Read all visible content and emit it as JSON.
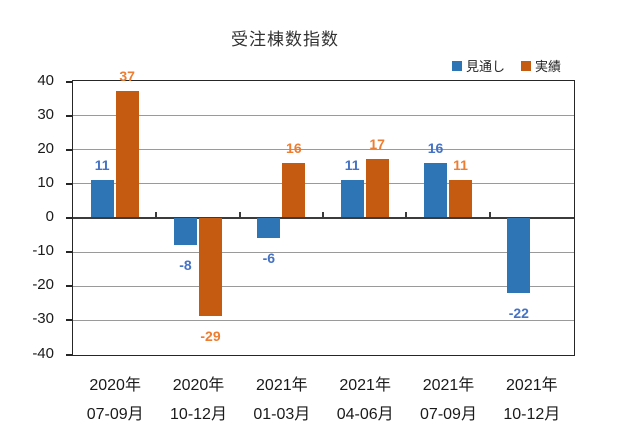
{
  "title": "受注棟数指数",
  "legend": {
    "items": [
      {
        "key": "forecast",
        "label": "見通し",
        "color": "#2E75B6"
      },
      {
        "key": "actual",
        "label": "実績",
        "color": "#C55A11"
      }
    ]
  },
  "chart_data": {
    "type": "bar",
    "title": "受注棟数指数",
    "categories": [
      [
        "2020年",
        "07-09月"
      ],
      [
        "2020年",
        "10-12月"
      ],
      [
        "2021年",
        "01-03月"
      ],
      [
        "2021年",
        "04-06月"
      ],
      [
        "2021年",
        "07-09月"
      ],
      [
        "2021年",
        "10-12月"
      ]
    ],
    "series": [
      {
        "key": "forecast",
        "name": "見通し",
        "color": "#2E75B6",
        "label_color": "#4472C4",
        "values": [
          11,
          -8,
          -6,
          11,
          16,
          -22
        ]
      },
      {
        "key": "actual",
        "name": "実績",
        "color": "#C55A11",
        "label_color": "#ED7D31",
        "values": [
          37,
          -29,
          16,
          17,
          11,
          null
        ]
      }
    ],
    "xlabel": "",
    "ylabel": "",
    "ylim": [
      -40,
      40
    ],
    "ytick_step": 10,
    "grid": true,
    "legend_position": "top-right",
    "colors": {
      "gridline": "#9a9a9a",
      "zero_axis": "#3b3b3b",
      "plot_border": "#262626",
      "axis_text": "#1a1a1a"
    }
  }
}
